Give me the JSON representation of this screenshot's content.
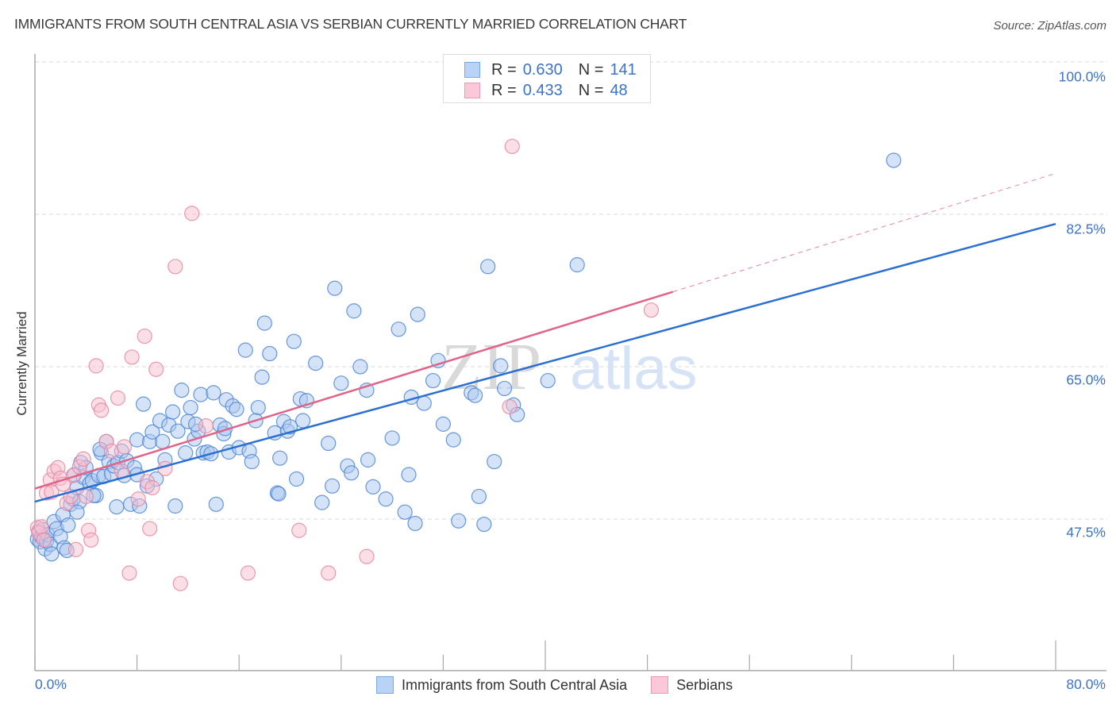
{
  "header": {
    "title": "IMMIGRANTS FROM SOUTH CENTRAL ASIA VS SERBIAN CURRENTLY MARRIED CORRELATION CHART",
    "source": "Source: ZipAtlas.com"
  },
  "watermark": {
    "zip": "ZIP",
    "atlas": "atlas"
  },
  "legend_top": [
    {
      "swatch_color": "#b8d3f5",
      "border_color": "#7aa7e6",
      "r_label": "R = ",
      "r_value": "0.630",
      "n_label": "N = ",
      "n_value": "141"
    },
    {
      "swatch_color": "#fac8d8",
      "border_color": "#ec9ab4",
      "r_label": "R = ",
      "r_value": "0.433",
      "n_label": "N = ",
      "n_value": "48"
    }
  ],
  "legend_bottom": [
    {
      "label": "Immigrants from South Central Asia",
      "swatch_color": "#b8d3f5",
      "border_color": "#7aa7e6"
    },
    {
      "label": "Serbians",
      "swatch_color": "#fac8d8",
      "border_color": "#ec9ab4"
    }
  ],
  "colors": {
    "blue_fill": "#a9c8f0",
    "blue_stroke": "#4f86d6",
    "blue_line": "#2a6fd1",
    "pink_fill": "#f7bfd0",
    "pink_stroke": "#e8879f",
    "pink_line": "#e0648a",
    "tick_label": "#3b73c9",
    "grid": "#d8d8d8"
  },
  "chart_data": {
    "type": "scatter",
    "title": "IMMIGRANTS FROM SOUTH CENTRAL ASIA VS SERBIAN CURRENTLY MARRIED CORRELATION CHART",
    "xlabel": "",
    "ylabel": "Currently Married",
    "xlim": [
      0,
      80
    ],
    "ylim": [
      30.1,
      101.8
    ],
    "x_tick_labels": [
      "0.0%",
      "80.0%"
    ],
    "x_minor_ticks": [
      0,
      8,
      16,
      24,
      32,
      40,
      48,
      56,
      64,
      72,
      80
    ],
    "y_ticks": [
      100.0,
      82.5,
      65.0,
      47.5
    ],
    "y_tick_labels": [
      "100.0%",
      "82.5%",
      "65.0%",
      "47.5%"
    ],
    "grid": true,
    "legend_placement": "top-center",
    "series": [
      {
        "name": "Immigrants from South Central Asia",
        "R": 0.63,
        "N": 141,
        "trend": {
          "x": [
            0,
            80
          ],
          "y": [
            49.5,
            81.4
          ]
        },
        "points": [
          [
            0.2,
            45.2
          ],
          [
            0.3,
            46.1
          ],
          [
            0.4,
            44.9
          ],
          [
            0.5,
            45.5
          ],
          [
            0.6,
            46.3
          ],
          [
            0.8,
            44.1
          ],
          [
            0.9,
            45.0
          ],
          [
            1.0,
            45.7
          ],
          [
            1.2,
            44.6
          ],
          [
            1.3,
            43.5
          ],
          [
            1.5,
            47.2
          ],
          [
            1.7,
            46.4
          ],
          [
            2.0,
            45.5
          ],
          [
            2.2,
            48.0
          ],
          [
            2.3,
            44.2
          ],
          [
            2.5,
            43.9
          ],
          [
            2.6,
            46.8
          ],
          [
            2.8,
            49.2
          ],
          [
            3.0,
            49.8
          ],
          [
            3.1,
            52.6
          ],
          [
            3.3,
            51.1
          ],
          [
            3.5,
            49.5
          ],
          [
            3.6,
            54.0
          ],
          [
            3.8,
            52.3
          ],
          [
            4.0,
            53.4
          ],
          [
            4.3,
            51.6
          ],
          [
            4.5,
            51.9
          ],
          [
            4.8,
            50.2
          ],
          [
            5.0,
            52.5
          ],
          [
            5.2,
            55.1
          ],
          [
            5.4,
            52.4
          ],
          [
            5.6,
            56.4
          ],
          [
            5.8,
            54.1
          ],
          [
            6.0,
            52.7
          ],
          [
            6.2,
            53.6
          ],
          [
            6.5,
            54.0
          ],
          [
            6.8,
            55.3
          ],
          [
            7.0,
            52.5
          ],
          [
            7.2,
            54.2
          ],
          [
            7.5,
            49.2
          ],
          [
            7.8,
            53.4
          ],
          [
            8.0,
            56.6
          ],
          [
            8.2,
            49.0
          ],
          [
            8.5,
            60.7
          ],
          [
            8.8,
            51.3
          ],
          [
            9.0,
            56.4
          ],
          [
            9.2,
            57.5
          ],
          [
            9.5,
            52.1
          ],
          [
            9.8,
            58.8
          ],
          [
            10.0,
            56.4
          ],
          [
            10.2,
            54.3
          ],
          [
            10.5,
            58.3
          ],
          [
            10.8,
            59.8
          ],
          [
            11.2,
            57.6
          ],
          [
            11.5,
            62.3
          ],
          [
            11.8,
            55.1
          ],
          [
            12.0,
            58.7
          ],
          [
            12.2,
            60.3
          ],
          [
            12.5,
            56.7
          ],
          [
            12.8,
            57.6
          ],
          [
            13.0,
            61.8
          ],
          [
            13.2,
            55.1
          ],
          [
            13.5,
            55.2
          ],
          [
            13.8,
            55.0
          ],
          [
            14.0,
            62.0
          ],
          [
            14.2,
            49.2
          ],
          [
            14.5,
            58.3
          ],
          [
            14.8,
            57.3
          ],
          [
            15.0,
            61.2
          ],
          [
            15.2,
            55.2
          ],
          [
            15.5,
            60.5
          ],
          [
            15.8,
            60.1
          ],
          [
            16.0,
            55.7
          ],
          [
            16.5,
            66.9
          ],
          [
            16.8,
            55.3
          ],
          [
            17.0,
            54.1
          ],
          [
            17.5,
            60.3
          ],
          [
            17.8,
            63.8
          ],
          [
            18.0,
            70.0
          ],
          [
            18.4,
            66.5
          ],
          [
            18.8,
            57.4
          ],
          [
            19.0,
            50.5
          ],
          [
            19.2,
            54.5
          ],
          [
            19.5,
            58.7
          ],
          [
            19.8,
            57.6
          ],
          [
            20.0,
            58.1
          ],
          [
            20.3,
            67.9
          ],
          [
            20.5,
            52.1
          ],
          [
            20.8,
            61.3
          ],
          [
            21.3,
            61.1
          ],
          [
            22.0,
            65.4
          ],
          [
            22.5,
            49.4
          ],
          [
            23.0,
            56.2
          ],
          [
            23.5,
            74.0
          ],
          [
            24.0,
            63.1
          ],
          [
            24.5,
            53.6
          ],
          [
            24.8,
            52.8
          ],
          [
            25.0,
            71.4
          ],
          [
            25.5,
            65.0
          ],
          [
            26.0,
            62.3
          ],
          [
            26.5,
            51.2
          ],
          [
            27.5,
            49.8
          ],
          [
            28.0,
            56.8
          ],
          [
            28.5,
            69.3
          ],
          [
            29.0,
            48.3
          ],
          [
            29.5,
            61.5
          ],
          [
            29.8,
            47.0
          ],
          [
            30.0,
            71.0
          ],
          [
            30.5,
            60.8
          ],
          [
            31.2,
            63.4
          ],
          [
            32.0,
            58.4
          ],
          [
            32.8,
            56.6
          ],
          [
            33.2,
            47.3
          ],
          [
            34.2,
            62.0
          ],
          [
            34.5,
            61.7
          ],
          [
            34.8,
            50.1
          ],
          [
            35.2,
            46.9
          ],
          [
            35.5,
            76.5
          ],
          [
            36.0,
            54.1
          ],
          [
            36.5,
            65.1
          ],
          [
            36.8,
            62.5
          ],
          [
            37.5,
            60.6
          ],
          [
            37.8,
            59.5
          ],
          [
            40.2,
            63.4
          ],
          [
            42.5,
            76.7
          ],
          [
            67.3,
            88.7
          ],
          [
            3.3,
            48.3
          ],
          [
            4.6,
            50.2
          ],
          [
            6.4,
            48.9
          ],
          [
            8.0,
            52.6
          ],
          [
            11.0,
            49.0
          ],
          [
            12.6,
            58.4
          ],
          [
            14.9,
            57.9
          ],
          [
            17.3,
            58.8
          ],
          [
            19.1,
            50.4
          ],
          [
            21.0,
            58.8
          ],
          [
            23.3,
            51.3
          ],
          [
            26.1,
            54.3
          ],
          [
            29.3,
            52.6
          ],
          [
            31.6,
            65.7
          ],
          [
            5.1,
            55.5
          ]
        ]
      },
      {
        "name": "Serbians",
        "R": 0.433,
        "N": 48,
        "trend": {
          "x": [
            0,
            50
          ],
          "y": [
            51.0,
            73.6
          ],
          "extended": {
            "x": [
              50,
              80
            ],
            "y": [
              73.6,
              87.2
            ]
          }
        },
        "points": [
          [
            0.2,
            46.5
          ],
          [
            0.3,
            45.9
          ],
          [
            0.5,
            46.6
          ],
          [
            0.7,
            45.1
          ],
          [
            0.9,
            50.5
          ],
          [
            1.2,
            52.0
          ],
          [
            1.3,
            50.6
          ],
          [
            1.5,
            53.0
          ],
          [
            1.8,
            53.4
          ],
          [
            2.0,
            52.2
          ],
          [
            2.2,
            51.5
          ],
          [
            2.5,
            49.3
          ],
          [
            2.8,
            50.1
          ],
          [
            3.0,
            52.5
          ],
          [
            3.2,
            44.0
          ],
          [
            3.5,
            53.5
          ],
          [
            3.8,
            54.4
          ],
          [
            4.0,
            50.1
          ],
          [
            4.2,
            46.2
          ],
          [
            4.4,
            45.1
          ],
          [
            4.8,
            65.1
          ],
          [
            5.0,
            60.6
          ],
          [
            5.2,
            60.0
          ],
          [
            5.6,
            56.4
          ],
          [
            6.0,
            55.3
          ],
          [
            6.5,
            61.4
          ],
          [
            6.8,
            53.0
          ],
          [
            7.0,
            55.8
          ],
          [
            7.4,
            41.3
          ],
          [
            7.6,
            66.1
          ],
          [
            8.1,
            49.8
          ],
          [
            8.6,
            68.5
          ],
          [
            8.8,
            51.8
          ],
          [
            9.0,
            46.4
          ],
          [
            9.2,
            51.1
          ],
          [
            9.5,
            64.7
          ],
          [
            10.2,
            53.3
          ],
          [
            11.0,
            76.5
          ],
          [
            11.4,
            40.1
          ],
          [
            12.3,
            82.6
          ],
          [
            13.4,
            58.2
          ],
          [
            16.7,
            41.3
          ],
          [
            20.7,
            46.2
          ],
          [
            23.0,
            41.3
          ],
          [
            26.0,
            43.2
          ],
          [
            37.2,
            60.4
          ],
          [
            37.4,
            90.3
          ],
          [
            48.3,
            71.5
          ]
        ]
      }
    ]
  }
}
